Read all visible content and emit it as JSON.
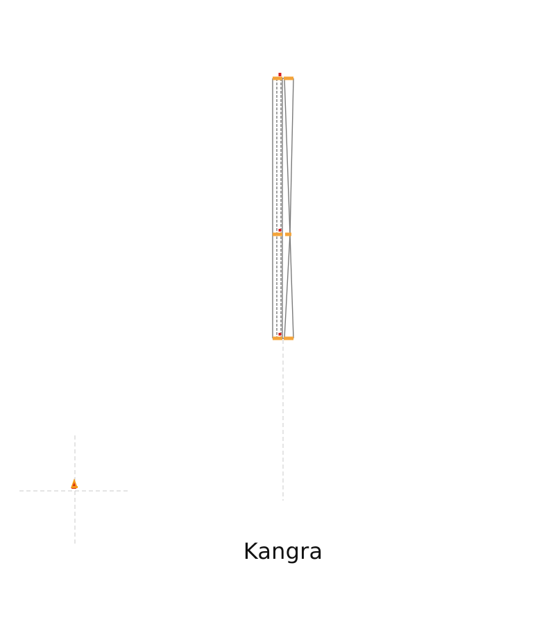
{
  "drawing": {
    "label": "Kangra",
    "colors": {
      "outline": "#7a7a7a",
      "centerline": "#c8c8c8",
      "marker_orange": "#f4a43a",
      "marker_red": "#d42020",
      "north_orange": "#f59a1a",
      "north_red": "#d92b12"
    },
    "icons": {
      "north_arrow": "north-arrow-icon"
    }
  }
}
